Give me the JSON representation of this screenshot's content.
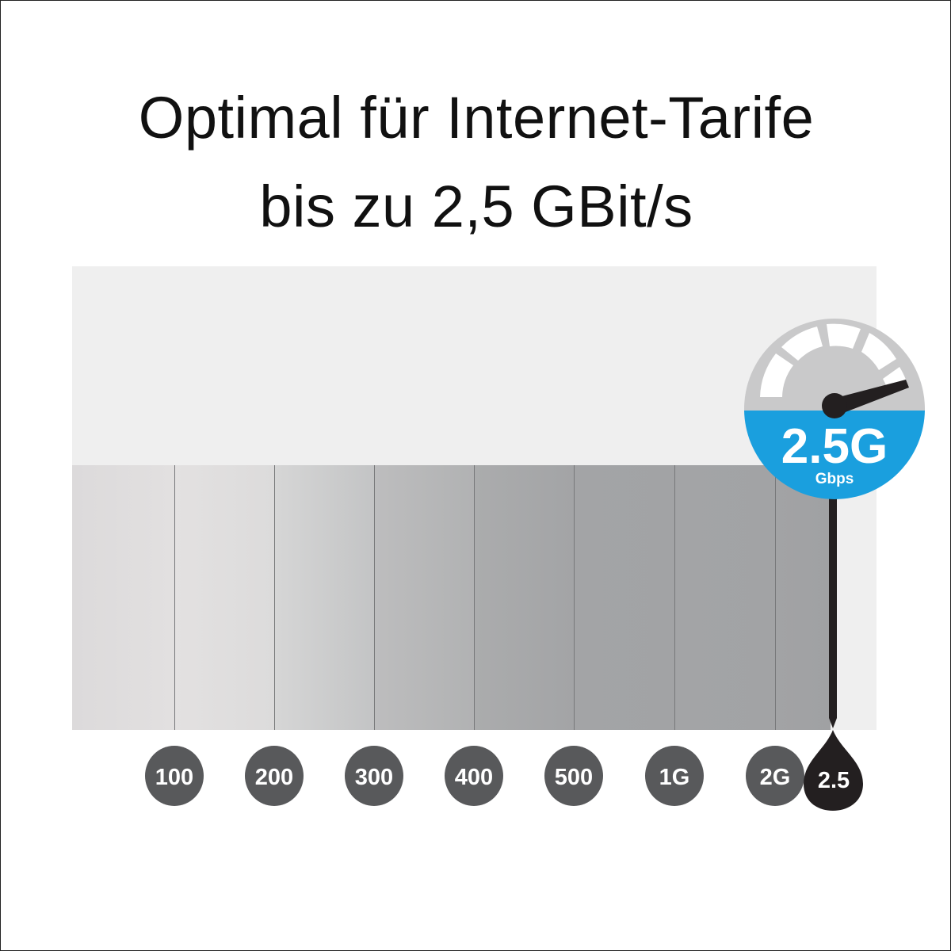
{
  "title": {
    "line1": "Optimal für Internet-Tarife",
    "line2": "bis zu 2,5 GBit/s"
  },
  "gauge": {
    "value_label": "2.5G",
    "unit_label": "Gbps",
    "icon": "speedometer-icon",
    "accent_color": "#1a9fde"
  },
  "scale": {
    "ticks": [
      "100",
      "200",
      "300",
      "400",
      "500",
      "1G",
      "2G"
    ],
    "current": "2.5",
    "tick_color": "#58595b",
    "current_color": "#231f20"
  }
}
